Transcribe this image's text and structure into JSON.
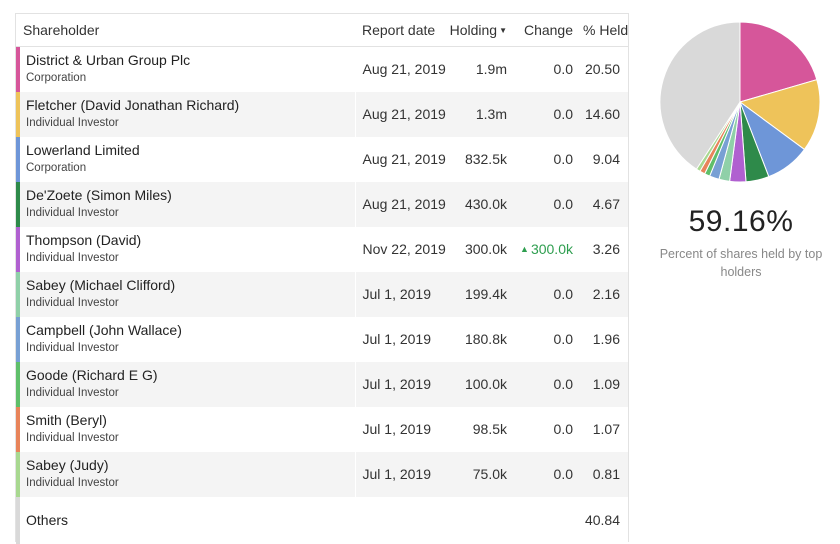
{
  "table": {
    "headers": {
      "shareholder": "Shareholder",
      "report_date": "Report date",
      "holding": "Holding",
      "change": "Change",
      "pct_held": "% Held"
    },
    "sort_indicator": "holding-descending",
    "rows": [
      {
        "name": "District & Urban Group Plc",
        "type": "Corporation",
        "date": "Aug 21, 2019",
        "holding": "1.9m",
        "change": "0.0",
        "change_up": false,
        "pct": "20.50",
        "color": "#d6569a"
      },
      {
        "name": "Fletcher (David Jonathan Richard)",
        "type": "Individual Investor",
        "date": "Aug 21, 2019",
        "holding": "1.3m",
        "change": "0.0",
        "change_up": false,
        "pct": "14.60",
        "color": "#eec35a"
      },
      {
        "name": "Lowerland Limited",
        "type": "Corporation",
        "date": "Aug 21, 2019",
        "holding": "832.5k",
        "change": "0.0",
        "change_up": false,
        "pct": "9.04",
        "color": "#6e96d8"
      },
      {
        "name": "De'Zoete (Simon Miles)",
        "type": "Individual Investor",
        "date": "Aug 21, 2019",
        "holding": "430.0k",
        "change": "0.0",
        "change_up": false,
        "pct": "4.67",
        "color": "#2e8a4a"
      },
      {
        "name": "Thompson (David)",
        "type": "Individual Investor",
        "date": "Nov 22, 2019",
        "holding": "300.0k",
        "change": "300.0k",
        "change_up": true,
        "pct": "3.26",
        "color": "#b060d0"
      },
      {
        "name": "Sabey (Michael Clifford)",
        "type": "Individual Investor",
        "date": "Jul 1, 2019",
        "holding": "199.4k",
        "change": "0.0",
        "change_up": false,
        "pct": "2.16",
        "color": "#8fd0a8"
      },
      {
        "name": "Campbell (John Wallace)",
        "type": "Individual Investor",
        "date": "Jul 1, 2019",
        "holding": "180.8k",
        "change": "0.0",
        "change_up": false,
        "pct": "1.96",
        "color": "#78a0d4"
      },
      {
        "name": "Goode (Richard E G)",
        "type": "Individual Investor",
        "date": "Jul 1, 2019",
        "holding": "100.0k",
        "change": "0.0",
        "change_up": false,
        "pct": "1.09",
        "color": "#5fbf6a"
      },
      {
        "name": "Smith (Beryl)",
        "type": "Individual Investor",
        "date": "Jul 1, 2019",
        "holding": "98.5k",
        "change": "0.0",
        "change_up": false,
        "pct": "1.07",
        "color": "#e8845a"
      },
      {
        "name": "Sabey (Judy)",
        "type": "Individual Investor",
        "date": "Jul 1, 2019",
        "holding": "75.0k",
        "change": "0.0",
        "change_up": false,
        "pct": "0.81",
        "color": "#a8d890"
      }
    ],
    "others": {
      "name": "Others",
      "pct": "40.84",
      "color": "#d9d9d9"
    }
  },
  "summary": {
    "top_holders_pct": "59.16%",
    "caption": "Percent of shares held by top holders"
  },
  "chart_data": {
    "type": "pie",
    "slices": [
      {
        "label": "District & Urban Group Plc",
        "value": 20.5,
        "color": "#d6569a"
      },
      {
        "label": "Fletcher (David Jonathan Richard)",
        "value": 14.6,
        "color": "#eec35a"
      },
      {
        "label": "Lowerland Limited",
        "value": 9.04,
        "color": "#6e96d8"
      },
      {
        "label": "De'Zoete (Simon Miles)",
        "value": 4.67,
        "color": "#2e8a4a"
      },
      {
        "label": "Thompson (David)",
        "value": 3.26,
        "color": "#b060d0"
      },
      {
        "label": "Sabey (Michael Clifford)",
        "value": 2.16,
        "color": "#8fd0a8"
      },
      {
        "label": "Campbell (John Wallace)",
        "value": 1.96,
        "color": "#78a0d4"
      },
      {
        "label": "Goode (Richard E G)",
        "value": 1.09,
        "color": "#5fbf6a"
      },
      {
        "label": "Smith (Beryl)",
        "value": 1.07,
        "color": "#e8845a"
      },
      {
        "label": "Sabey (Judy)",
        "value": 0.81,
        "color": "#a8d890"
      },
      {
        "label": "Others",
        "value": 40.84,
        "color": "#d9d9d9"
      }
    ]
  }
}
